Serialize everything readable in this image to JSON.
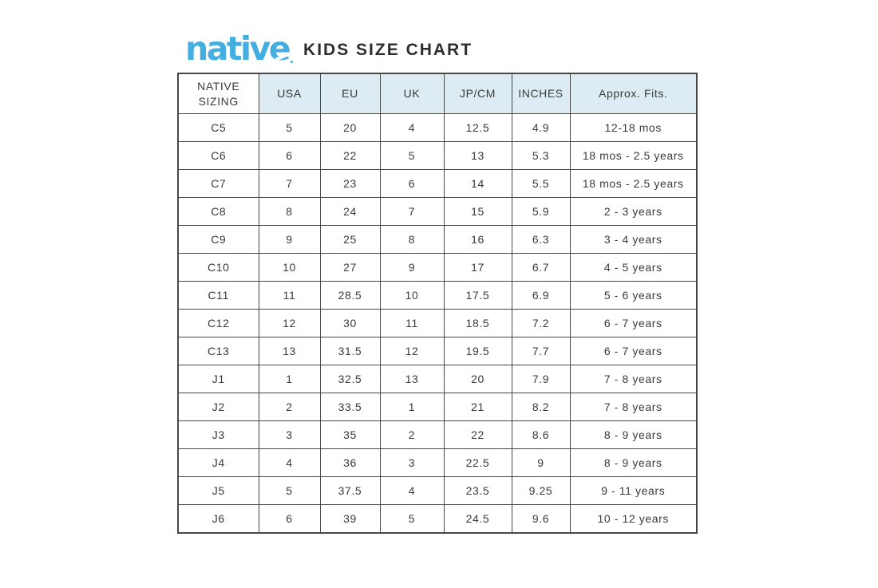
{
  "title": {
    "logo": "native",
    "heading": "KIDS SIZE CHART"
  },
  "colors": {
    "logo_blue": "#45AEE1",
    "header_bg": "#DDECF3",
    "grid_border": "#474747",
    "text": "#3A3A3A",
    "page_bg": "#FFFFFF"
  },
  "chart_data": {
    "type": "table",
    "title": "native KIDS SIZE CHART",
    "columns": [
      "NATIVE SIZING",
      "USA",
      "EU",
      "UK",
      "JP/CM",
      "INCHES",
      "Approx. Fits."
    ],
    "rows": [
      [
        "C5",
        "5",
        "20",
        "4",
        "12.5",
        "4.9",
        "12-18 mos"
      ],
      [
        "C6",
        "6",
        "22",
        "5",
        "13",
        "5.3",
        "18 mos - 2.5 years"
      ],
      [
        "C7",
        "7",
        "23",
        "6",
        "14",
        "5.5",
        "18 mos - 2.5 years"
      ],
      [
        "C8",
        "8",
        "24",
        "7",
        "15",
        "5.9",
        "2 - 3 years"
      ],
      [
        "C9",
        "9",
        "25",
        "8",
        "16",
        "6.3",
        "3 - 4 years"
      ],
      [
        "C10",
        "10",
        "27",
        "9",
        "17",
        "6.7",
        "4 - 5 years"
      ],
      [
        "C11",
        "11",
        "28.5",
        "10",
        "17.5",
        "6.9",
        "5 - 6 years"
      ],
      [
        "C12",
        "12",
        "30",
        "11",
        "18.5",
        "7.2",
        "6 - 7 years"
      ],
      [
        "C13",
        "13",
        "31.5",
        "12",
        "19.5",
        "7.7",
        "6 - 7 years"
      ],
      [
        "J1",
        "1",
        "32.5",
        "13",
        "20",
        "7.9",
        "7 - 8 years"
      ],
      [
        "J2",
        "2",
        "33.5",
        "1",
        "21",
        "8.2",
        "7 - 8 years"
      ],
      [
        "J3",
        "3",
        "35",
        "2",
        "22",
        "8.6",
        "8 - 9 years"
      ],
      [
        "J4",
        "4",
        "36",
        "3",
        "22.5",
        "9",
        "8 - 9 years"
      ],
      [
        "J5",
        "5",
        "37.5",
        "4",
        "23.5",
        "9.25",
        "9 - 11 years"
      ],
      [
        "J6",
        "6",
        "39",
        "5",
        "24.5",
        "9.6",
        "10 - 12 years"
      ]
    ]
  }
}
